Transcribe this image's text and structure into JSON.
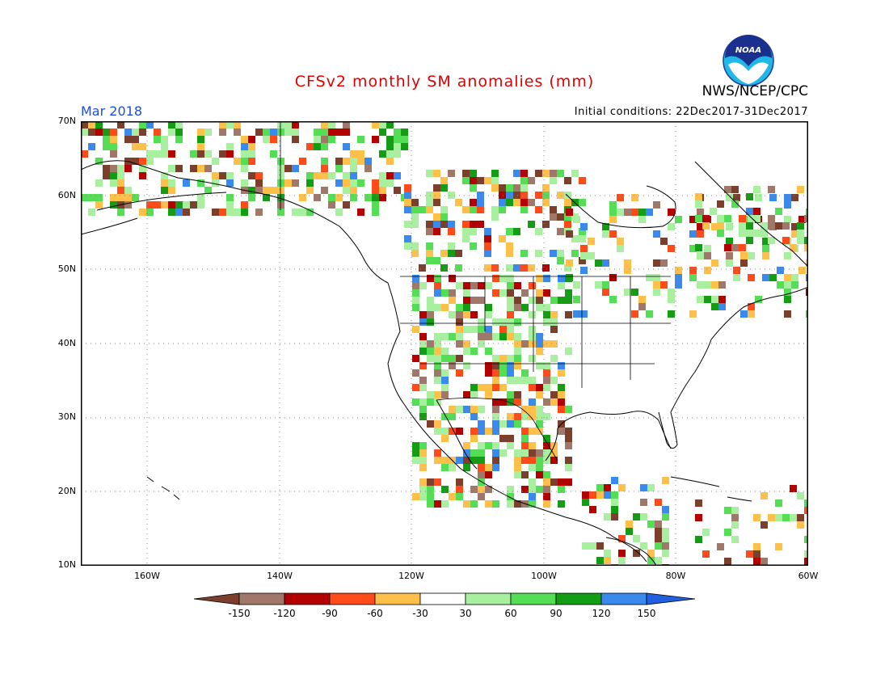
{
  "header": {
    "title": "CFSv2 monthly SM anomalies (mm)",
    "agency": "NWS/NCEP/CPC",
    "period": "Mar 2018",
    "initial_conditions": "Initial conditions: 22Dec2017-31Dec2017",
    "logo_text": "NOAA"
  },
  "map": {
    "lat_labels": [
      "70N",
      "60N",
      "50N",
      "40N",
      "30N",
      "20N",
      "10N"
    ],
    "lon_labels": [
      "160W",
      "140W",
      "120W",
      "100W",
      "80W",
      "60W"
    ],
    "extent": {
      "lon_min": -170,
      "lon_max": -60,
      "lat_min": 10,
      "lat_max": 70
    }
  },
  "legend": {
    "tick_labels": [
      "-150",
      "-120",
      "-90",
      "-60",
      "-30",
      "30",
      "60",
      "90",
      "120",
      "150"
    ],
    "colors": [
      "#7b3f2b",
      "#a0786a",
      "#b30000",
      "#ff4a1a",
      "#ffc04a",
      "#ffffff",
      "#a8f0a0",
      "#55dd55",
      "#149c14",
      "#3a8aee",
      "#1f5fe0"
    ]
  },
  "colors": {
    "title": "#e00000",
    "period": "#1a4fd6",
    "wet_strong": "#3a8aee",
    "wet": "#149c14",
    "dry": "#ffc04a"
  }
}
